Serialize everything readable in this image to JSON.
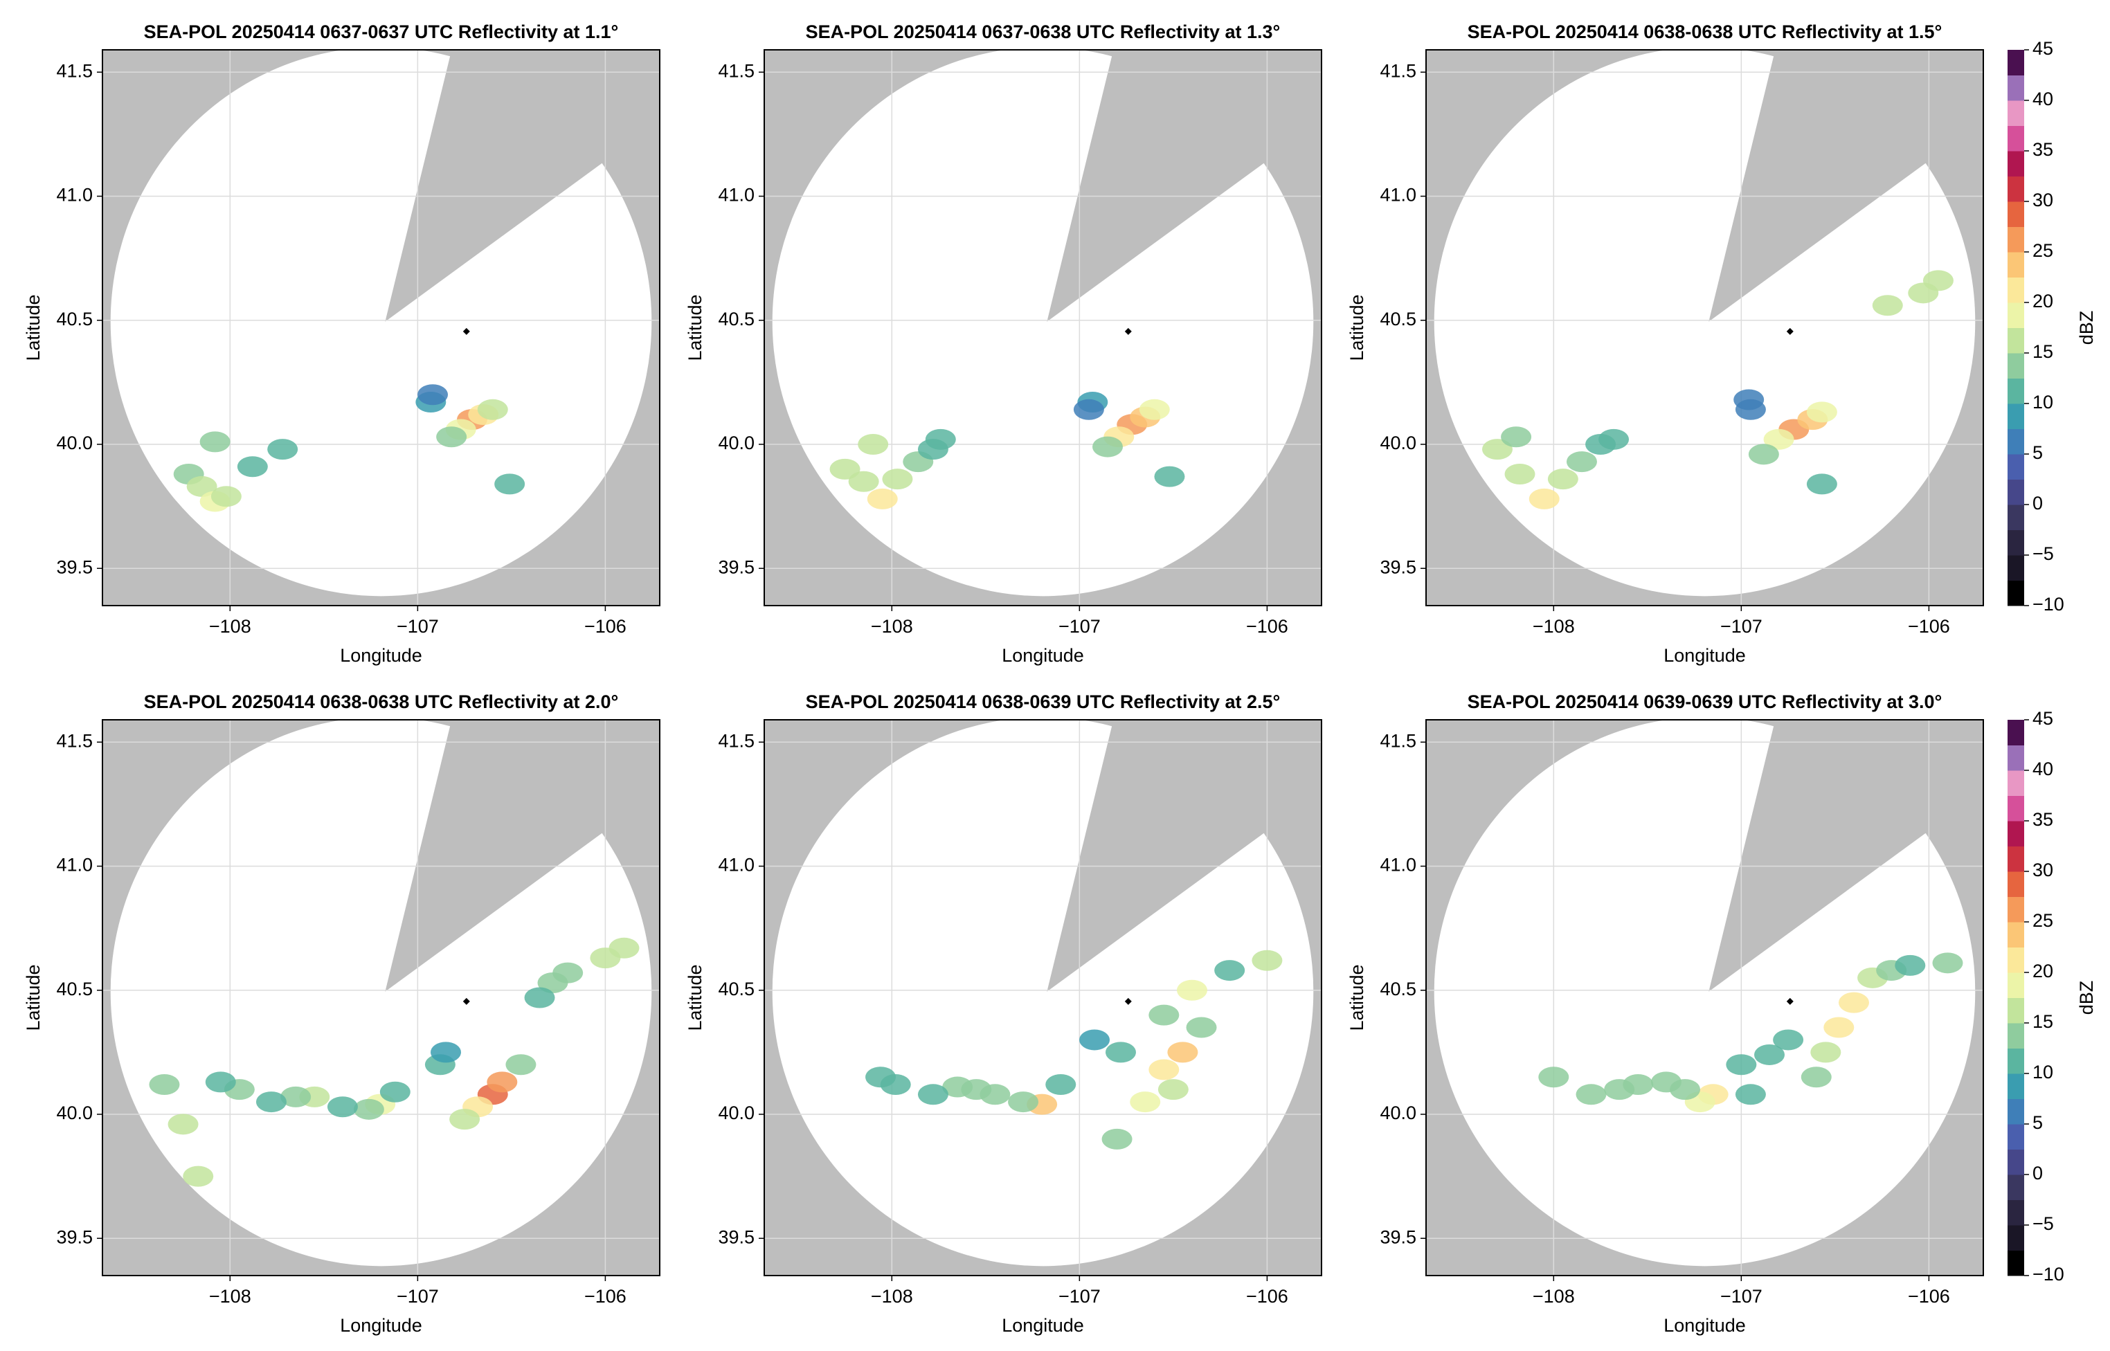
{
  "chart_data": [
    {
      "type": "radar-ppi",
      "title": "SEA-POL 20250414 0637-0637 UTC Reflectivity at 1.1°",
      "xlabel": "Longitude",
      "ylabel": "Latitude",
      "xlim": [
        -108.68,
        -105.71
      ],
      "ylim": [
        39.35,
        41.59
      ],
      "xticks": [
        {
          "value": -108,
          "label": "−108"
        },
        {
          "value": -107,
          "label": "−107"
        },
        {
          "value": -106,
          "label": "−106"
        }
      ],
      "yticks": [
        39.5,
        {
          "value": 40,
          "label": "40.0"
        },
        40.5,
        {
          "value": 41,
          "label": "41.0"
        },
        41.5
      ],
      "grid": true,
      "marker": {
        "lon": -106.74,
        "lat": 40.455
      },
      "echoes": {
        "lon": [
          -106.71,
          -106.65,
          -106.77,
          -106.82,
          -106.6,
          -106.93,
          -106.92,
          -108.22,
          -108.15,
          -108.08,
          -108.02,
          -107.88,
          -107.72,
          -106.51,
          -108.08
        ],
        "lat": [
          40.1,
          40.12,
          40.06,
          40.03,
          40.14,
          40.17,
          40.2,
          39.88,
          39.83,
          39.77,
          39.79,
          39.91,
          39.98,
          39.84,
          40.01
        ],
        "dbz": [
          25,
          22,
          18,
          14,
          16,
          8,
          7,
          14,
          16,
          18,
          15,
          12,
          12,
          12,
          14
        ]
      }
    },
    {
      "type": "radar-ppi",
      "title": "SEA-POL 20250414 0637-0638 UTC Reflectivity at 1.3°",
      "xlabel": "Longitude",
      "ylabel": "Latitude",
      "xlim": [
        -108.68,
        -105.71
      ],
      "ylim": [
        39.35,
        41.59
      ],
      "xticks": [
        {
          "value": -108,
          "label": "−108"
        },
        {
          "value": -107,
          "label": "−107"
        },
        {
          "value": -106,
          "label": "−106"
        }
      ],
      "yticks": [
        39.5,
        {
          "value": 40,
          "label": "40.0"
        },
        40.5,
        {
          "value": 41,
          "label": "41.0"
        },
        41.5
      ],
      "grid": true,
      "marker": {
        "lon": -106.74,
        "lat": 40.455
      },
      "echoes": {
        "lon": [
          -106.72,
          -106.65,
          -106.79,
          -106.85,
          -106.6,
          -106.93,
          -106.95,
          -108.25,
          -108.15,
          -108.05,
          -107.97,
          -107.86,
          -107.78,
          -107.74,
          -106.52,
          -108.1
        ],
        "lat": [
          40.08,
          40.11,
          40.03,
          39.99,
          40.14,
          40.17,
          40.14,
          39.9,
          39.85,
          39.78,
          39.86,
          39.93,
          39.98,
          40.02,
          39.87,
          40.0
        ],
        "dbz": [
          27,
          24,
          20,
          14,
          18,
          8,
          6,
          16,
          17,
          20,
          16,
          13,
          12,
          11,
          12,
          15
        ]
      }
    },
    {
      "type": "radar-ppi",
      "title": "SEA-POL 20250414 0638-0638 UTC Reflectivity at 1.5°",
      "xlabel": "Longitude",
      "ylabel": "Latitude",
      "xlim": [
        -108.68,
        -105.71
      ],
      "ylim": [
        39.35,
        41.59
      ],
      "xticks": [
        {
          "value": -108,
          "label": "−108"
        },
        {
          "value": -107,
          "label": "−107"
        },
        {
          "value": -106,
          "label": "−106"
        }
      ],
      "yticks": [
        39.5,
        {
          "value": 40,
          "label": "40.0"
        },
        40.5,
        {
          "value": 41,
          "label": "41.0"
        },
        41.5
      ],
      "grid": true,
      "marker": {
        "lon": -106.74,
        "lat": 40.455
      },
      "echoes": {
        "lon": [
          -106.72,
          -106.62,
          -106.8,
          -106.88,
          -106.57,
          -106.96,
          -106.95,
          -108.3,
          -108.18,
          -108.05,
          -107.95,
          -107.85,
          -107.75,
          -107.68,
          -106.57,
          -108.2,
          -106.03,
          -105.95,
          -106.22
        ],
        "lat": [
          40.06,
          40.1,
          40.02,
          39.96,
          40.13,
          40.18,
          40.14,
          39.98,
          39.88,
          39.78,
          39.86,
          39.93,
          40.0,
          40.02,
          39.84,
          40.03,
          40.61,
          40.66,
          40.56
        ],
        "dbz": [
          25,
          24,
          18,
          13,
          18,
          7,
          6,
          15,
          16,
          20,
          16,
          14,
          12,
          11,
          12,
          14,
          15,
          16,
          17
        ]
      },
      "colorbar": {
        "label": "dBZ",
        "lim": [
          -10,
          45
        ],
        "step": 2.5,
        "ticks": [
          {
            "value": -10,
            "label": "−10"
          },
          {
            "value": -5,
            "label": "−5"
          },
          0,
          5,
          10,
          15,
          20,
          25,
          30,
          35,
          40,
          45
        ],
        "colors": [
          "#000000",
          "#1a1626",
          "#2a2540",
          "#3a3760",
          "#46478a",
          "#4a5fae",
          "#3f7fb8",
          "#3a9db0",
          "#5bb5a0",
          "#8fcc9e",
          "#c2e49c",
          "#ecf4a8",
          "#fbe89a",
          "#fbc676",
          "#f59a5a",
          "#e6653f",
          "#cc3340",
          "#b01650",
          "#d6509a",
          "#e897c4",
          "#9a70b8",
          "#4a1050"
        ]
      }
    },
    {
      "type": "radar-ppi",
      "title": "SEA-POL 20250414 0638-0638 UTC Reflectivity at 2.0°",
      "xlabel": "Longitude",
      "ylabel": "Latitude",
      "xlim": [
        -108.68,
        -105.71
      ],
      "ylim": [
        39.35,
        41.59
      ],
      "xticks": [
        {
          "value": -108,
          "label": "−108"
        },
        {
          "value": -107,
          "label": "−107"
        },
        {
          "value": -106,
          "label": "−106"
        }
      ],
      "yticks": [
        39.5,
        {
          "value": 40,
          "label": "40.0"
        },
        40.5,
        {
          "value": 41,
          "label": "41.0"
        },
        41.5
      ],
      "grid": true,
      "marker": {
        "lon": -106.74,
        "lat": 40.455
      },
      "echoes": {
        "lon": [
          -106.6,
          -106.68,
          -106.55,
          -106.75,
          -106.45,
          -106.88,
          -106.85,
          -107.2,
          -107.26,
          -107.12,
          -107.4,
          -107.55,
          -107.65,
          -107.78,
          -107.95,
          -108.05,
          -108.25,
          -108.17,
          -106.28,
          -106.2,
          -106.0,
          -105.9,
          -106.35,
          -108.35
        ],
        "lat": [
          40.08,
          40.03,
          40.13,
          39.98,
          40.2,
          40.2,
          40.25,
          40.04,
          40.02,
          40.09,
          40.03,
          40.07,
          40.07,
          40.05,
          40.1,
          40.13,
          39.96,
          39.75,
          40.53,
          40.57,
          40.63,
          40.67,
          40.47,
          40.12
        ],
        "dbz": [
          28,
          22,
          25,
          16,
          14,
          10,
          9,
          18,
          14,
          12,
          12,
          16,
          14,
          12,
          13,
          12,
          15,
          17,
          14,
          13,
          16,
          17,
          12,
          14
        ]
      }
    },
    {
      "type": "radar-ppi",
      "title": "SEA-POL 20250414 0638-0639 UTC Reflectivity at 2.5°",
      "xlabel": "Longitude",
      "ylabel": "Latitude",
      "xlim": [
        -108.68,
        -105.71
      ],
      "ylim": [
        39.35,
        41.59
      ],
      "xticks": [
        {
          "value": -108,
          "label": "−108"
        },
        {
          "value": -107,
          "label": "−107"
        },
        {
          "value": -106,
          "label": "−106"
        }
      ],
      "yticks": [
        39.5,
        {
          "value": 40,
          "label": "40.0"
        },
        40.5,
        {
          "value": 41,
          "label": "41.0"
        },
        41.5
      ],
      "grid": true,
      "marker": {
        "lon": -106.74,
        "lat": 40.455
      },
      "echoes": {
        "lon": [
          -106.45,
          -106.55,
          -106.65,
          -106.5,
          -106.35,
          -106.4,
          -106.55,
          -106.78,
          -106.2,
          -106.0,
          -107.2,
          -107.3,
          -107.1,
          -107.45,
          -107.55,
          -107.65,
          -107.78,
          -107.98,
          -108.06,
          -106.92,
          -106.8
        ],
        "lat": [
          40.25,
          40.18,
          40.05,
          40.1,
          40.35,
          40.5,
          40.4,
          40.25,
          40.58,
          40.62,
          40.04,
          40.05,
          40.12,
          40.08,
          40.1,
          40.11,
          40.08,
          40.12,
          40.15,
          40.3,
          39.9
        ],
        "dbz": [
          24,
          20,
          18,
          16,
          14,
          18,
          13,
          11,
          12,
          16,
          24,
          14,
          12,
          13,
          14,
          13,
          12,
          12,
          12,
          9,
          14
        ]
      }
    },
    {
      "type": "radar-ppi",
      "title": "SEA-POL 20250414 0639-0639 UTC Reflectivity at 3.0°",
      "xlabel": "Longitude",
      "ylabel": "Latitude",
      "xlim": [
        -108.68,
        -105.71
      ],
      "ylim": [
        39.35,
        41.59
      ],
      "xticks": [
        {
          "value": -108,
          "label": "−108"
        },
        {
          "value": -107,
          "label": "−107"
        },
        {
          "value": -106,
          "label": "−106"
        }
      ],
      "yticks": [
        39.5,
        {
          "value": 40,
          "label": "40.0"
        },
        40.5,
        {
          "value": 41,
          "label": "41.0"
        },
        41.5
      ],
      "grid": true,
      "marker": {
        "lon": -106.74,
        "lat": 40.455
      },
      "echoes": {
        "lon": [
          -106.4,
          -106.48,
          -106.55,
          -106.6,
          -106.3,
          -106.2,
          -106.1,
          -106.75,
          -106.85,
          -107.0,
          -107.15,
          -107.22,
          -107.3,
          -107.4,
          -107.55,
          -107.65,
          -107.8,
          -108.0,
          -106.95,
          -105.9
        ],
        "lat": [
          40.45,
          40.35,
          40.25,
          40.15,
          40.55,
          40.58,
          40.6,
          40.3,
          40.24,
          40.2,
          40.08,
          40.05,
          40.1,
          40.13,
          40.12,
          40.1,
          40.08,
          40.15,
          40.08,
          40.61
        ],
        "dbz": [
          22,
          20,
          16,
          14,
          16,
          14,
          12,
          12,
          10,
          11,
          20,
          18,
          14,
          13,
          14,
          13,
          14,
          13,
          12,
          13
        ]
      },
      "colorbar": {
        "label": "dBZ",
        "lim": [
          -10,
          45
        ],
        "step": 2.5,
        "ticks": [
          {
            "value": -10,
            "label": "−10"
          },
          {
            "value": -5,
            "label": "−5"
          },
          0,
          5,
          10,
          15,
          20,
          25,
          30,
          35,
          40,
          45
        ],
        "colors": [
          "#000000",
          "#1a1626",
          "#2a2540",
          "#3a3760",
          "#46478a",
          "#4a5fae",
          "#3f7fb8",
          "#3a9db0",
          "#5bb5a0",
          "#8fcc9e",
          "#c2e49c",
          "#ecf4a8",
          "#fbe89a",
          "#fbc676",
          "#f59a5a",
          "#e6653f",
          "#cc3340",
          "#b01650",
          "#d6509a",
          "#e897c4",
          "#9a70b8",
          "#4a1050"
        ]
      }
    }
  ]
}
